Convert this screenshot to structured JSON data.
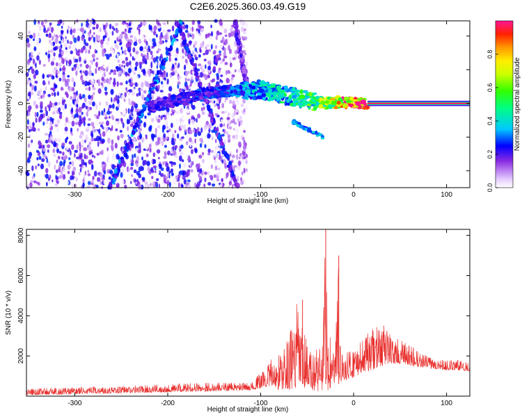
{
  "figure": {
    "title": "C2E6.2025.360.03.49.G19"
  },
  "chart_data": [
    {
      "type": "heatmap",
      "xlabel": "Height of straight line (km)",
      "ylabel": "Frequency (Hz)",
      "xlim": [
        -352,
        125
      ],
      "ylim": [
        -50,
        49
      ],
      "xticks": [
        -300,
        -200,
        -100,
        0,
        100
      ],
      "yticks": [
        -40,
        -20,
        0,
        20,
        40
      ],
      "colorbar": {
        "label": "Normalized spectral amplitude",
        "range": [
          0,
          1
        ],
        "ticks": [
          0.0,
          0.2,
          0.4,
          0.6,
          0.8
        ],
        "tick_labels": [
          "0.0",
          "0.2",
          "0.4",
          "0.6",
          "0.8"
        ]
      },
      "features": [
        {
          "x": [
            -352,
            -125
          ],
          "y": [
            -50,
            49
          ],
          "amplitude": 0.15
        },
        {
          "x": [
            -220,
            -150,
            -100,
            -60,
            -30,
            -10,
            0,
            15,
            125
          ],
          "y": [
            -2,
            7,
            8,
            3,
            0,
            1,
            0,
            0,
            0
          ],
          "amplitude": [
            0.2,
            0.25,
            0.35,
            0.45,
            0.6,
            0.8,
            0.9,
            1.0,
            1.0
          ]
        },
        {
          "x": [
            -262,
            -185
          ],
          "y": [
            -50,
            49
          ],
          "amplitude": 0.25
        },
        {
          "x": [
            -190,
            -125
          ],
          "y": [
            49,
            -50
          ],
          "amplitude": 0.2
        },
        {
          "x": [
            -128,
            -115
          ],
          "y": [
            49,
            10
          ],
          "amplitude": 0.15
        }
      ]
    },
    {
      "type": "line",
      "xlabel": "Height of straight line (km)",
      "ylabel": "SNR (10 * v/v)",
      "xlim": [
        -352,
        125
      ],
      "ylim": [
        0,
        8300
      ],
      "xticks": [
        -300,
        -200,
        -100,
        0,
        100
      ],
      "yticks": [
        2000,
        4000,
        6000,
        8000
      ],
      "envelope": {
        "x": [
          -352,
          -300,
          -250,
          -200,
          -150,
          -110,
          -100,
          -90,
          -80,
          -70,
          -60,
          -55,
          -50,
          -45,
          -40,
          -35,
          -30,
          -28,
          -25,
          -20,
          -16,
          -15,
          -10,
          0,
          10,
          20,
          30,
          35,
          40,
          50,
          60,
          70,
          80,
          90,
          100,
          110,
          125
        ],
        "high": [
          400,
          450,
          500,
          600,
          700,
          650,
          1200,
          1800,
          2200,
          3000,
          4800,
          3500,
          2800,
          2200,
          2600,
          3200,
          8300,
          3500,
          3000,
          2400,
          7000,
          3000,
          2000,
          2600,
          2800,
          3400,
          3500,
          3800,
          3000,
          2800,
          2600,
          2200,
          2000,
          1900,
          1800,
          1800,
          1750
        ],
        "low": [
          50,
          100,
          150,
          200,
          250,
          300,
          400,
          500,
          300,
          300,
          400,
          300,
          300,
          300,
          250,
          200,
          300,
          250,
          300,
          600,
          800,
          700,
          800,
          900,
          1200,
          1300,
          1500,
          1600,
          1600,
          1600,
          1500,
          1450,
          1400,
          1350,
          1300,
          1300,
          1250
        ]
      },
      "series": [
        {
          "color": "#e8302e"
        }
      ]
    }
  ]
}
